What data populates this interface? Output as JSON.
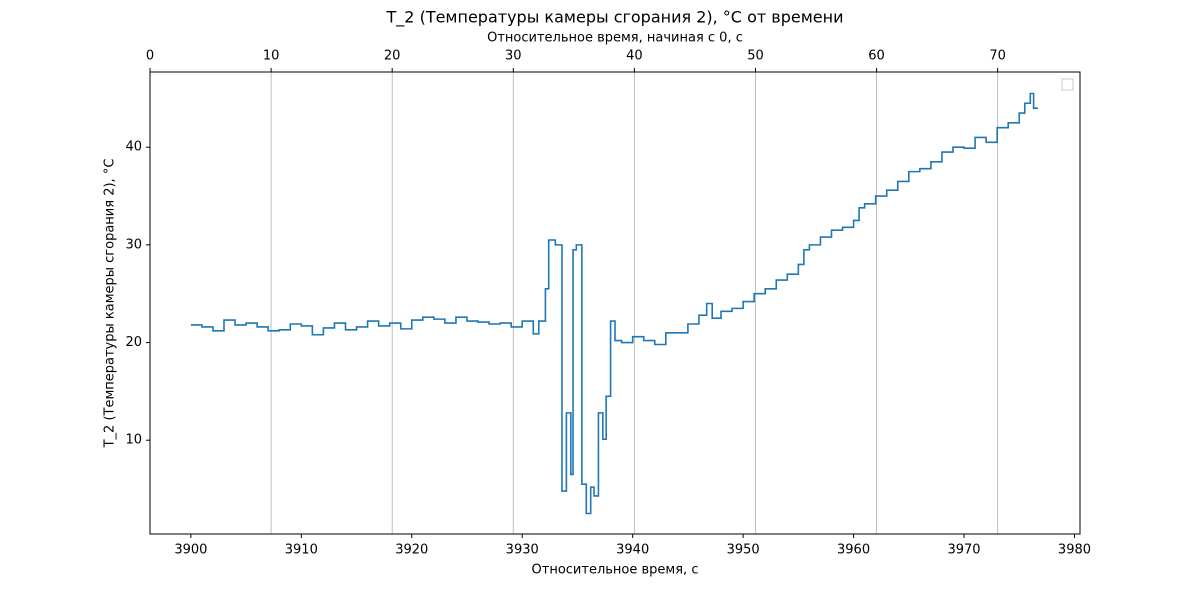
{
  "chart_data": {
    "type": "line",
    "title": "T_2 (Температуры камеры сгорания 2), °C от времени",
    "xlabel": "Относительное время, с",
    "x2label": "Относительное время, начиная с 0, с",
    "ylabel": "T_2 (Температуры камеры сгорания 2), °C",
    "xlim": [
      3896.3,
      3980.5
    ],
    "xticks": [
      3900,
      3910,
      3920,
      3930,
      3940,
      3950,
      3960,
      3970,
      3980
    ],
    "x2lim": [
      0,
      76.8
    ],
    "x2ticks": [
      0,
      10,
      20,
      30,
      40,
      50,
      60,
      70
    ],
    "ylim": [
      0.4,
      47.7
    ],
    "yticks": [
      10,
      20,
      30,
      40
    ],
    "grid": "x2",
    "step": "post",
    "x": [
      3900,
      3901,
      3902,
      3903,
      3904,
      3905,
      3906,
      3907,
      3908,
      3909,
      3910,
      3911,
      3912,
      3913,
      3914,
      3915,
      3916,
      3917,
      3918,
      3919,
      3920,
      3921,
      3922,
      3923,
      3924,
      3925,
      3926,
      3927,
      3928,
      3929,
      3930,
      3931,
      3931.5,
      3932.1,
      3932.4,
      3933.0,
      3933.6,
      3934.0,
      3934.4,
      3934.6,
      3934.9,
      3935.4,
      3935.8,
      3936.2,
      3936.5,
      3936.9,
      3937.3,
      3937.6,
      3938.0,
      3938.4,
      3939,
      3940,
      3941,
      3942,
      3943,
      3944,
      3945,
      3946,
      3946.7,
      3947.2,
      3948,
      3949,
      3950,
      3951,
      3952,
      3953,
      3954,
      3955,
      3955.5,
      3956,
      3957,
      3958,
      3959,
      3960,
      3960.5,
      3961,
      3962,
      3963,
      3964,
      3965,
      3966,
      3967,
      3968,
      3969,
      3970,
      3971,
      3972,
      3973,
      3974,
      3975,
      3975.5,
      3976,
      3976.3,
      3976.7
    ],
    "series": [
      {
        "name": "T_2",
        "color": "#1f77b4",
        "values": [
          21.8,
          21.6,
          21.2,
          22.3,
          21.8,
          22.0,
          21.6,
          21.2,
          21.3,
          21.9,
          21.7,
          20.8,
          21.5,
          22.0,
          21.3,
          21.6,
          22.2,
          21.7,
          22.0,
          21.4,
          22.3,
          22.6,
          22.4,
          22.0,
          22.6,
          22.2,
          22.1,
          21.9,
          22.0,
          21.6,
          22.2,
          20.9,
          22.2,
          25.5,
          30.5,
          30.0,
          4.8,
          12.8,
          6.5,
          29.5,
          30.0,
          5.5,
          2.5,
          5.2,
          4.3,
          12.8,
          10.1,
          14.5,
          22.2,
          20.2,
          20.0,
          20.6,
          20.2,
          19.8,
          21.0,
          21.0,
          21.9,
          22.8,
          24.0,
          22.5,
          23.2,
          23.5,
          24.2,
          25.0,
          25.5,
          26.4,
          27.0,
          28.0,
          29.5,
          30.0,
          30.8,
          31.5,
          31.8,
          32.5,
          33.8,
          34.2,
          35.0,
          35.6,
          36.5,
          37.5,
          37.8,
          38.5,
          39.5,
          40.0,
          39.9,
          41.0,
          40.5,
          42.0,
          42.5,
          43.5,
          44.5,
          45.5,
          44.0,
          44.0
        ]
      }
    ]
  }
}
